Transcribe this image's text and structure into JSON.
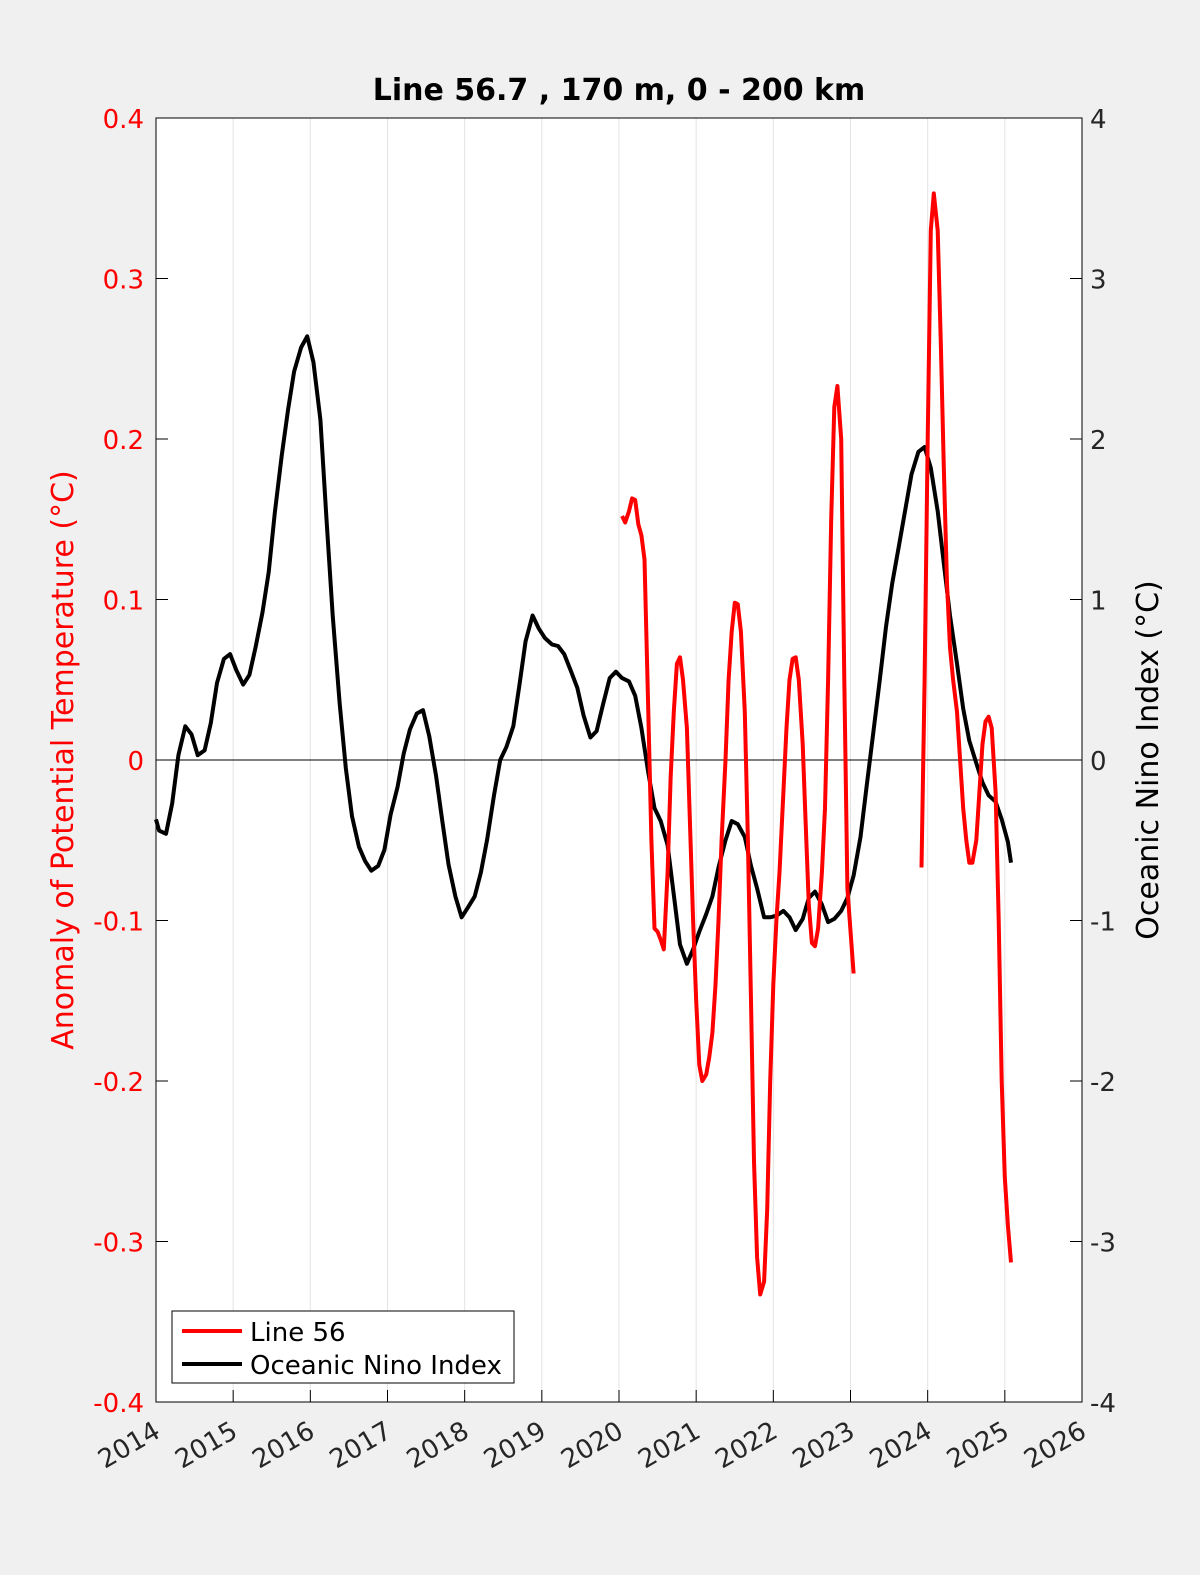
{
  "chart_data": {
    "type": "line",
    "title": "Line 56.7 , 170 m, 0 - 200 km",
    "xlabel": "",
    "ylabel_left": "Anomaly of Potential Temperature (°C)",
    "ylabel_right": "Oceanic Nino Index (°C)",
    "xlim": [
      2014,
      2026
    ],
    "ylim_left": [
      -0.4,
      0.4
    ],
    "ylim_right": [
      -4,
      4
    ],
    "x_ticks": [
      "2014",
      "2015",
      "2016",
      "2017",
      "2018",
      "2019",
      "2020",
      "2021",
      "2022",
      "2023",
      "2024",
      "2025",
      "2026"
    ],
    "y_ticks_left": [
      "0.4",
      "0.3",
      "0.2",
      "0.1",
      "0",
      "-0.1",
      "-0.2",
      "-0.3",
      "-0.4"
    ],
    "y_ticks_right": [
      "4",
      "3",
      "2",
      "1",
      "0",
      "-1",
      "-2",
      "-3",
      "-4"
    ],
    "grid": "vertical",
    "legend_position": "bottom-left",
    "colors": {
      "left_axis": "#ff0000",
      "line56": "#ff0000",
      "oni": "#000000",
      "background": "#f0f0f0",
      "plot": "#ffffff"
    },
    "series": [
      {
        "name": "Line 56",
        "axis": "left",
        "color": "#ff0000",
        "segments": [
          [
            [
              2020.04,
              0.152
            ],
            [
              2020.08,
              0.148
            ],
            [
              2020.13,
              0.155
            ],
            [
              2020.17,
              0.163
            ],
            [
              2020.21,
              0.162
            ],
            [
              2020.25,
              0.147
            ],
            [
              2020.29,
              0.14
            ],
            [
              2020.33,
              0.125
            ],
            [
              2020.38,
              0.03
            ],
            [
              2020.42,
              -0.05
            ],
            [
              2020.46,
              -0.105
            ],
            [
              2020.5,
              -0.107
            ],
            [
              2020.54,
              -0.112
            ],
            [
              2020.58,
              -0.118
            ],
            [
              2020.63,
              -0.07
            ],
            [
              2020.67,
              -0.01
            ],
            [
              2020.71,
              0.03
            ],
            [
              2020.75,
              0.06
            ],
            [
              2020.79,
              0.064
            ],
            [
              2020.83,
              0.05
            ],
            [
              2020.88,
              0.02
            ],
            [
              2020.92,
              -0.04
            ],
            [
              2020.96,
              -0.1
            ],
            [
              2021.0,
              -0.15
            ],
            [
              2021.04,
              -0.19
            ],
            [
              2021.08,
              -0.2
            ],
            [
              2021.13,
              -0.196
            ],
            [
              2021.17,
              -0.185
            ],
            [
              2021.21,
              -0.17
            ],
            [
              2021.25,
              -0.14
            ],
            [
              2021.29,
              -0.1
            ],
            [
              2021.33,
              -0.05
            ],
            [
              2021.38,
              0.0
            ],
            [
              2021.42,
              0.05
            ],
            [
              2021.46,
              0.08
            ],
            [
              2021.5,
              0.098
            ],
            [
              2021.54,
              0.097
            ],
            [
              2021.58,
              0.08
            ],
            [
              2021.63,
              0.03
            ],
            [
              2021.67,
              -0.05
            ],
            [
              2021.71,
              -0.15
            ],
            [
              2021.75,
              -0.25
            ],
            [
              2021.79,
              -0.31
            ],
            [
              2021.83,
              -0.333
            ],
            [
              2021.88,
              -0.325
            ],
            [
              2021.92,
              -0.28
            ],
            [
              2021.96,
              -0.2
            ],
            [
              2022.0,
              -0.14
            ],
            [
              2022.04,
              -0.1
            ],
            [
              2022.08,
              -0.07
            ],
            [
              2022.13,
              -0.02
            ],
            [
              2022.17,
              0.02
            ],
            [
              2022.21,
              0.05
            ],
            [
              2022.25,
              0.063
            ],
            [
              2022.29,
              0.064
            ],
            [
              2022.33,
              0.05
            ],
            [
              2022.38,
              0.01
            ],
            [
              2022.42,
              -0.04
            ],
            [
              2022.46,
              -0.09
            ],
            [
              2022.5,
              -0.114
            ],
            [
              2022.54,
              -0.116
            ],
            [
              2022.58,
              -0.105
            ],
            [
              2022.63,
              -0.07
            ],
            [
              2022.67,
              -0.03
            ],
            [
              2022.71,
              0.05
            ],
            [
              2022.75,
              0.15
            ],
            [
              2022.79,
              0.22
            ],
            [
              2022.83,
              0.233
            ],
            [
              2022.88,
              0.2
            ],
            [
              2022.92,
              0.05
            ],
            [
              2022.96,
              -0.08
            ],
            [
              2023.04,
              -0.133
            ]
          ],
          [
            [
              2023.92,
              -0.067
            ],
            [
              2023.96,
              0.05
            ],
            [
              2024.0,
              0.2
            ],
            [
              2024.04,
              0.33
            ],
            [
              2024.08,
              0.353
            ],
            [
              2024.13,
              0.33
            ],
            [
              2024.17,
              0.26
            ],
            [
              2024.21,
              0.18
            ],
            [
              2024.25,
              0.11
            ],
            [
              2024.29,
              0.07
            ],
            [
              2024.33,
              0.05
            ],
            [
              2024.38,
              0.03
            ],
            [
              2024.42,
              0.0
            ],
            [
              2024.46,
              -0.03
            ],
            [
              2024.5,
              -0.05
            ],
            [
              2024.54,
              -0.064
            ],
            [
              2024.58,
              -0.064
            ],
            [
              2024.63,
              -0.05
            ],
            [
              2024.67,
              -0.02
            ],
            [
              2024.71,
              0.01
            ],
            [
              2024.75,
              0.024
            ],
            [
              2024.79,
              0.027
            ],
            [
              2024.83,
              0.02
            ],
            [
              2024.88,
              -0.02
            ],
            [
              2024.92,
              -0.1
            ],
            [
              2024.96,
              -0.2
            ],
            [
              2025.0,
              -0.26
            ],
            [
              2025.04,
              -0.29
            ],
            [
              2025.08,
              -0.313
            ]
          ]
        ]
      },
      {
        "name": "Oceanic Nino Index",
        "axis": "right",
        "color": "#000000",
        "points": [
          [
            2014.0,
            -0.37
          ],
          [
            2014.04,
            -0.44
          ],
          [
            2014.13,
            -0.46
          ],
          [
            2014.21,
            -0.27
          ],
          [
            2014.29,
            0.03
          ],
          [
            2014.38,
            0.21
          ],
          [
            2014.46,
            0.16
          ],
          [
            2014.54,
            0.03
          ],
          [
            2014.63,
            0.06
          ],
          [
            2014.71,
            0.23
          ],
          [
            2014.79,
            0.48
          ],
          [
            2014.88,
            0.63
          ],
          [
            2014.96,
            0.66
          ],
          [
            2015.04,
            0.56
          ],
          [
            2015.13,
            0.47
          ],
          [
            2015.21,
            0.53
          ],
          [
            2015.29,
            0.7
          ],
          [
            2015.38,
            0.92
          ],
          [
            2015.46,
            1.17
          ],
          [
            2015.54,
            1.54
          ],
          [
            2015.63,
            1.9
          ],
          [
            2015.71,
            2.18
          ],
          [
            2015.79,
            2.42
          ],
          [
            2015.88,
            2.57
          ],
          [
            2015.96,
            2.64
          ],
          [
            2016.04,
            2.48
          ],
          [
            2016.13,
            2.12
          ],
          [
            2016.21,
            1.5
          ],
          [
            2016.29,
            0.9
          ],
          [
            2016.38,
            0.35
          ],
          [
            2016.46,
            -0.05
          ],
          [
            2016.54,
            -0.35
          ],
          [
            2016.63,
            -0.54
          ],
          [
            2016.71,
            -0.63
          ],
          [
            2016.79,
            -0.69
          ],
          [
            2016.88,
            -0.66
          ],
          [
            2016.96,
            -0.56
          ],
          [
            2017.04,
            -0.34
          ],
          [
            2017.13,
            -0.17
          ],
          [
            2017.21,
            0.04
          ],
          [
            2017.29,
            0.19
          ],
          [
            2017.38,
            0.29
          ],
          [
            2017.46,
            0.31
          ],
          [
            2017.54,
            0.15
          ],
          [
            2017.63,
            -0.1
          ],
          [
            2017.71,
            -0.38
          ],
          [
            2017.79,
            -0.65
          ],
          [
            2017.88,
            -0.85
          ],
          [
            2017.96,
            -0.98
          ],
          [
            2018.04,
            -0.92
          ],
          [
            2018.13,
            -0.85
          ],
          [
            2018.21,
            -0.7
          ],
          [
            2018.29,
            -0.5
          ],
          [
            2018.38,
            -0.22
          ],
          [
            2018.46,
            0.0
          ],
          [
            2018.54,
            0.08
          ],
          [
            2018.63,
            0.21
          ],
          [
            2018.71,
            0.47
          ],
          [
            2018.79,
            0.74
          ],
          [
            2018.88,
            0.9
          ],
          [
            2018.96,
            0.82
          ],
          [
            2019.04,
            0.76
          ],
          [
            2019.13,
            0.72
          ],
          [
            2019.21,
            0.71
          ],
          [
            2019.29,
            0.66
          ],
          [
            2019.38,
            0.55
          ],
          [
            2019.46,
            0.45
          ],
          [
            2019.54,
            0.28
          ],
          [
            2019.63,
            0.14
          ],
          [
            2019.71,
            0.18
          ],
          [
            2019.79,
            0.34
          ],
          [
            2019.88,
            0.51
          ],
          [
            2019.96,
            0.55
          ],
          [
            2020.04,
            0.51
          ],
          [
            2020.13,
            0.49
          ],
          [
            2020.21,
            0.4
          ],
          [
            2020.29,
            0.2
          ],
          [
            2020.38,
            -0.08
          ],
          [
            2020.46,
            -0.3
          ],
          [
            2020.54,
            -0.38
          ],
          [
            2020.63,
            -0.53
          ],
          [
            2020.71,
            -0.84
          ],
          [
            2020.79,
            -1.15
          ],
          [
            2020.88,
            -1.27
          ],
          [
            2020.96,
            -1.18
          ],
          [
            2021.04,
            -1.07
          ],
          [
            2021.13,
            -0.96
          ],
          [
            2021.21,
            -0.85
          ],
          [
            2021.29,
            -0.67
          ],
          [
            2021.38,
            -0.5
          ],
          [
            2021.46,
            -0.38
          ],
          [
            2021.54,
            -0.4
          ],
          [
            2021.63,
            -0.48
          ],
          [
            2021.71,
            -0.66
          ],
          [
            2021.79,
            -0.8
          ],
          [
            2021.88,
            -0.98
          ],
          [
            2021.96,
            -0.98
          ],
          [
            2022.04,
            -0.97
          ],
          [
            2022.13,
            -0.94
          ],
          [
            2022.21,
            -0.98
          ],
          [
            2022.29,
            -1.06
          ],
          [
            2022.38,
            -0.99
          ],
          [
            2022.46,
            -0.86
          ],
          [
            2022.54,
            -0.82
          ],
          [
            2022.63,
            -0.9
          ],
          [
            2022.71,
            -1.01
          ],
          [
            2022.79,
            -0.99
          ],
          [
            2022.88,
            -0.94
          ],
          [
            2022.96,
            -0.86
          ],
          [
            2023.04,
            -0.72
          ],
          [
            2023.13,
            -0.48
          ],
          [
            2023.21,
            -0.16
          ],
          [
            2023.29,
            0.15
          ],
          [
            2023.38,
            0.5
          ],
          [
            2023.46,
            0.83
          ],
          [
            2023.54,
            1.1
          ],
          [
            2023.63,
            1.34
          ],
          [
            2023.71,
            1.56
          ],
          [
            2023.79,
            1.78
          ],
          [
            2023.88,
            1.92
          ],
          [
            2023.96,
            1.95
          ],
          [
            2024.04,
            1.82
          ],
          [
            2024.13,
            1.55
          ],
          [
            2024.21,
            1.22
          ],
          [
            2024.29,
            0.9
          ],
          [
            2024.38,
            0.6
          ],
          [
            2024.46,
            0.32
          ],
          [
            2024.54,
            0.12
          ],
          [
            2024.63,
            -0.02
          ],
          [
            2024.71,
            -0.14
          ],
          [
            2024.79,
            -0.22
          ],
          [
            2024.88,
            -0.26
          ],
          [
            2024.96,
            -0.37
          ],
          [
            2025.04,
            -0.51
          ],
          [
            2025.08,
            -0.64
          ]
        ]
      }
    ]
  }
}
